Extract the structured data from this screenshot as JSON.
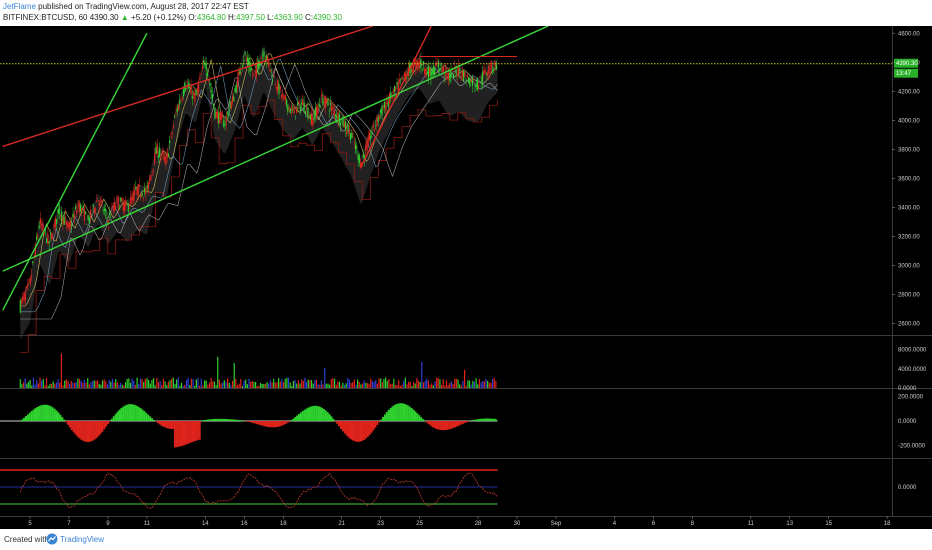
{
  "header": {
    "author": "JetFlame",
    "published": "published on TradingView.com, August 28, 2017 22:47 EST",
    "symbol": "BITFINEX:BTCUSD, 60",
    "last": "4390.30",
    "change": "+5.20 (+0.12%)",
    "open_label": "O:",
    "open": "4364.80",
    "high_label": "H:",
    "high": "4397.50",
    "low_label": "L:",
    "low": "4363.90",
    "close_label": "C:",
    "close": "4390.30"
  },
  "footer": {
    "created_with": "Created with",
    "brand": "TradingView"
  },
  "colors": {
    "background": "#000000",
    "up": "#2fd12f",
    "down": "#e0241c",
    "neutral": "#2f3fd1",
    "channel_red": "#d42a22",
    "channel_green": "#38d838",
    "dotted_level": "#c9c928",
    "price_tag": "#28b028"
  },
  "chart_data": [
    {
      "type": "candlestick",
      "symbol": "BITFINEX:BTCUSD",
      "interval": "60",
      "price_axis_ticks": [
        2600,
        2800,
        3000,
        3200,
        3400,
        3600,
        3800,
        4000,
        4200,
        4400,
        4600
      ],
      "ylim": [
        2520,
        4650
      ],
      "x_axis_ticks": [
        "5",
        "7",
        "9",
        "11",
        "14",
        "16",
        "18",
        "21",
        "23",
        "25",
        "28",
        "30",
        "Sep",
        "4",
        "6",
        "8",
        "11",
        "13",
        "15",
        "18"
      ],
      "price_path": [
        {
          "day": 4.5,
          "price": 2720
        },
        {
          "day": 5.0,
          "price": 2870
        },
        {
          "day": 5.5,
          "price": 3300
        },
        {
          "day": 6.0,
          "price": 3150
        },
        {
          "day": 6.5,
          "price": 3380
        },
        {
          "day": 7.0,
          "price": 3250
        },
        {
          "day": 7.5,
          "price": 3420
        },
        {
          "day": 8.0,
          "price": 3300
        },
        {
          "day": 8.5,
          "price": 3460
        },
        {
          "day": 9.0,
          "price": 3320
        },
        {
          "day": 9.5,
          "price": 3440
        },
        {
          "day": 10.0,
          "price": 3400
        },
        {
          "day": 10.5,
          "price": 3520
        },
        {
          "day": 11.0,
          "price": 3500
        },
        {
          "day": 11.5,
          "price": 3800
        },
        {
          "day": 12.0,
          "price": 3720
        },
        {
          "day": 12.5,
          "price": 4050
        },
        {
          "day": 13.0,
          "price": 4250
        },
        {
          "day": 13.5,
          "price": 4150
        },
        {
          "day": 14.0,
          "price": 4420
        },
        {
          "day": 14.5,
          "price": 4050
        },
        {
          "day": 15.0,
          "price": 3980
        },
        {
          "day": 15.5,
          "price": 4180
        },
        {
          "day": 16.0,
          "price": 4450
        },
        {
          "day": 16.5,
          "price": 4300
        },
        {
          "day": 17.0,
          "price": 4480
        },
        {
          "day": 17.5,
          "price": 4300
        },
        {
          "day": 18.0,
          "price": 4150
        },
        {
          "day": 18.5,
          "price": 4050
        },
        {
          "day": 19.0,
          "price": 4120
        },
        {
          "day": 19.5,
          "price": 4000
        },
        {
          "day": 20.0,
          "price": 4150
        },
        {
          "day": 20.5,
          "price": 4080
        },
        {
          "day": 21.0,
          "price": 4000
        },
        {
          "day": 21.5,
          "price": 3900
        },
        {
          "day": 22.0,
          "price": 3700
        },
        {
          "day": 22.5,
          "price": 3900
        },
        {
          "day": 23.0,
          "price": 4050
        },
        {
          "day": 23.5,
          "price": 4150
        },
        {
          "day": 24.0,
          "price": 4250
        },
        {
          "day": 24.5,
          "price": 4350
        },
        {
          "day": 25.0,
          "price": 4400
        },
        {
          "day": 25.5,
          "price": 4320
        },
        {
          "day": 26.0,
          "price": 4380
        },
        {
          "day": 26.5,
          "price": 4300
        },
        {
          "day": 27.0,
          "price": 4350
        },
        {
          "day": 27.5,
          "price": 4280
        },
        {
          "day": 28.0,
          "price": 4250
        },
        {
          "day": 28.5,
          "price": 4350
        },
        {
          "day": 29.0,
          "price": 4390
        }
      ],
      "trendlines": [
        {
          "name": "red-channel-upper",
          "from": {
            "day": 3.6,
            "price": 3820
          },
          "to": {
            "day": 22.6,
            "price": 4650
          },
          "color": "#d42a22"
        },
        {
          "name": "green-channel-upper",
          "from": {
            "day": 3.6,
            "price": 2960
          },
          "to": {
            "day": 31.6,
            "price": 4650
          },
          "color": "#38d838"
        },
        {
          "name": "green-channel-lower",
          "from": {
            "day": 3.6,
            "price": 2690
          },
          "to": {
            "day": 11.0,
            "price": 4600
          },
          "color": "#38d838"
        },
        {
          "name": "red-trend-steep",
          "from": {
            "day": 22.0,
            "price": 3680
          },
          "to": {
            "day": 25.6,
            "price": 4650
          },
          "color": "#d42a22"
        }
      ],
      "horizontal_levels": [
        {
          "name": "resistance-red",
          "price": 4440,
          "from_day": 25.0,
          "to_day": 30.0,
          "color": "#d42a22"
        },
        {
          "name": "last-price-dotted",
          "price": 4390,
          "color": "#c9c928"
        }
      ],
      "price_tags": [
        {
          "name": "last-price-tag",
          "text": "4390.30"
        },
        {
          "name": "countdown-tag",
          "text": "13:47"
        }
      ]
    },
    {
      "type": "bar",
      "name": "volume",
      "axis_ticks": [
        "8000.0000",
        "4000.0000",
        "0.0000"
      ],
      "ylim": [
        0,
        10000
      ]
    },
    {
      "type": "histogram",
      "name": "oscillator",
      "axis_ticks": [
        "200.0000",
        "0.0000",
        "-200.0000"
      ],
      "ylim": [
        -300,
        260
      ]
    },
    {
      "type": "line",
      "name": "momentum",
      "axis_ticks": [
        "0.0000"
      ],
      "levels": {
        "upper": 1,
        "middle": 0,
        "lower": -1
      }
    }
  ]
}
